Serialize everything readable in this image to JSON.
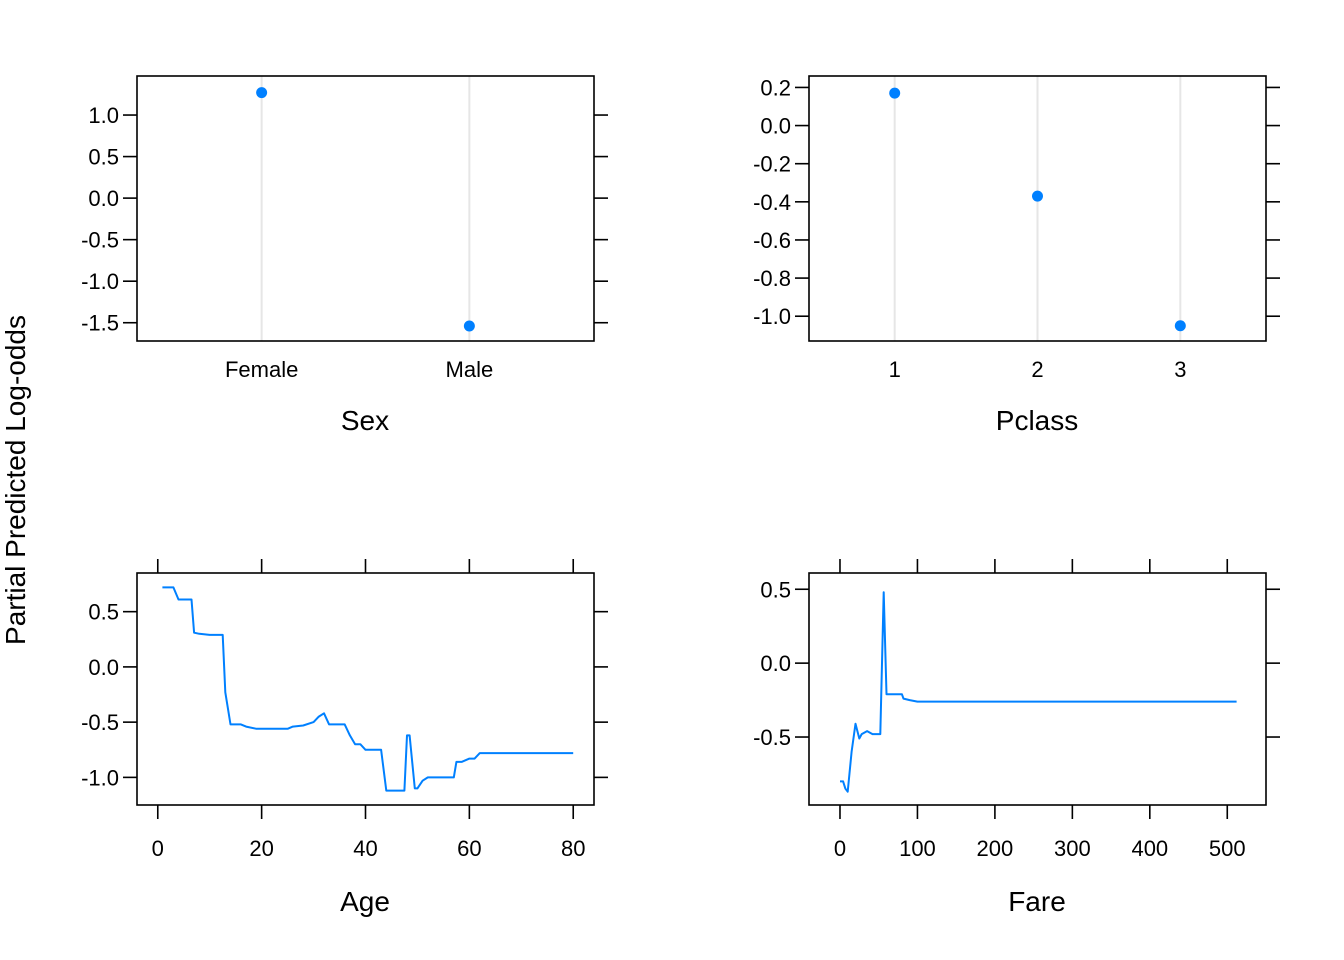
{
  "figure": {
    "ylabel": "Partial Predicted Log-odds",
    "line_color": "#0080ff"
  },
  "chart_data": [
    {
      "type": "scatter",
      "xlabel": "Sex",
      "categories": [
        "Female",
        "Male"
      ],
      "values": [
        1.27,
        -1.54
      ],
      "ylim": [
        -1.72,
        1.47
      ],
      "yticks": [
        -1.5,
        -1.0,
        -0.5,
        0.0,
        0.5,
        1.0
      ],
      "ytick_labels": [
        "-1.5",
        "-1.0",
        "-0.5",
        "0.0",
        "0.5",
        "1.0"
      ],
      "grid": "vertical guides at categories"
    },
    {
      "type": "scatter",
      "xlabel": "Pclass",
      "categories": [
        "1",
        "2",
        "3"
      ],
      "values": [
        0.17,
        -0.37,
        -1.05
      ],
      "ylim": [
        -1.13,
        0.26
      ],
      "yticks": [
        -1.0,
        -0.8,
        -0.6,
        -0.4,
        -0.2,
        0.0,
        0.2
      ],
      "ytick_labels": [
        "-1.0",
        "-0.8",
        "-0.6",
        "-0.4",
        "-0.2",
        "0.0",
        "0.2"
      ],
      "grid": "vertical guides at categories"
    },
    {
      "type": "line",
      "xlabel": "Age",
      "xlim": [
        -4.0,
        84.0
      ],
      "ylim": [
        -1.25,
        0.85
      ],
      "xticks": [
        0,
        20,
        40,
        60,
        80
      ],
      "xtick_labels": [
        "0",
        "20",
        "40",
        "60",
        "80"
      ],
      "yticks": [
        -1.0,
        -0.5,
        0.0,
        0.5
      ],
      "ytick_labels": [
        "-1.0",
        "-0.5",
        "0.0",
        "0.5"
      ],
      "x": [
        0.9,
        3.0,
        4.0,
        6.0,
        6.5,
        7.0,
        8.0,
        10.0,
        12.5,
        13.0,
        14.0,
        16.0,
        17.0,
        19.0,
        22.0,
        25.0,
        26.0,
        28.0,
        30.0,
        31.0,
        32.0,
        33.0,
        36.0,
        37.0,
        38.0,
        39.0,
        40.0,
        42.0,
        43.0,
        44.0,
        45.0,
        47.0,
        47.5,
        48.0,
        48.5,
        49.5,
        50.0,
        51.0,
        52.0,
        54.0,
        57.0,
        57.5,
        58.5,
        60.0,
        61.0,
        62.0,
        65.0,
        70.0,
        75.0,
        80.0
      ],
      "y": [
        0.72,
        0.72,
        0.61,
        0.61,
        0.61,
        0.31,
        0.3,
        0.29,
        0.29,
        -0.23,
        -0.52,
        -0.52,
        -0.54,
        -0.56,
        -0.56,
        -0.56,
        -0.54,
        -0.53,
        -0.5,
        -0.45,
        -0.42,
        -0.52,
        -0.52,
        -0.62,
        -0.7,
        -0.7,
        -0.75,
        -0.75,
        -0.75,
        -1.12,
        -1.12,
        -1.12,
        -1.12,
        -0.62,
        -0.62,
        -1.1,
        -1.1,
        -1.03,
        -1.0,
        -1.0,
        -1.0,
        -0.86,
        -0.86,
        -0.83,
        -0.83,
        -0.78,
        -0.78,
        -0.78,
        -0.78,
        -0.78
      ]
    },
    {
      "type": "line",
      "xlabel": "Fare",
      "xlim": [
        -40.0,
        550.0
      ],
      "ylim": [
        -0.96,
        0.61
      ],
      "xticks": [
        0,
        100,
        200,
        300,
        400,
        500
      ],
      "xtick_labels": [
        "0",
        "100",
        "200",
        "300",
        "400",
        "500"
      ],
      "yticks": [
        -0.5,
        0.0,
        0.5
      ],
      "ytick_labels": [
        "-0.5",
        "0.0",
        "0.5"
      ],
      "x": [
        0.0,
        4.0,
        7.0,
        10.0,
        15.0,
        20.0,
        25.0,
        28.0,
        35.0,
        42.0,
        50.0,
        52.0,
        56.5,
        60.0,
        63.0,
        70.0,
        80.0,
        82.0,
        90.0,
        100.0,
        150.0,
        200.0,
        300.0,
        400.0,
        512.0
      ],
      "y": [
        -0.8,
        -0.8,
        -0.85,
        -0.87,
        -0.6,
        -0.41,
        -0.51,
        -0.48,
        -0.46,
        -0.48,
        -0.48,
        -0.48,
        0.48,
        -0.21,
        -0.21,
        -0.21,
        -0.21,
        -0.24,
        -0.25,
        -0.26,
        -0.26,
        -0.26,
        -0.26,
        -0.26,
        -0.26
      ]
    }
  ]
}
